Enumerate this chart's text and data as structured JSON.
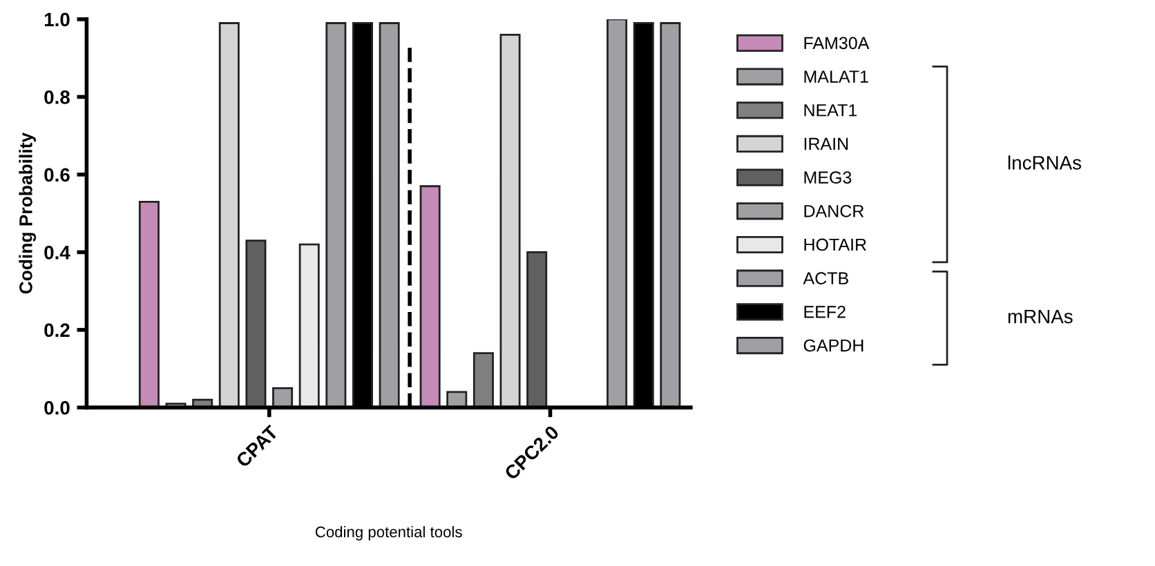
{
  "chart_data": {
    "type": "bar",
    "xlabel": "Coding potential tools",
    "ylabel": "Coding Probability",
    "categories": [
      "CPAT",
      "CPC2.0"
    ],
    "series": [
      {
        "name": "FAM30A",
        "color": "#c48ab8",
        "values": [
          0.53,
          0.57
        ]
      },
      {
        "name": "MALAT1",
        "color": "#a0a0a4",
        "values": [
          0.01,
          0.04
        ]
      },
      {
        "name": "NEAT1",
        "color": "#808080",
        "values": [
          0.02,
          0.14
        ]
      },
      {
        "name": "IRAIN",
        "color": "#d4d4d4",
        "values": [
          0.99,
          0.96
        ]
      },
      {
        "name": "MEG3",
        "color": "#606060",
        "values": [
          0.43,
          0.4
        ]
      },
      {
        "name": "DANCR",
        "color": "#a0a0a4",
        "values": [
          0.05,
          null
        ]
      },
      {
        "name": "HOTAIR",
        "color": "#e8e8e8",
        "values": [
          0.42,
          null
        ]
      },
      {
        "name": "ACTB",
        "color": "#a0a0a4",
        "values": [
          0.99,
          1.0
        ]
      },
      {
        "name": "EEF2",
        "color": "#000000",
        "values": [
          0.99,
          0.99
        ]
      },
      {
        "name": "GAPDH",
        "color": "#a0a0a4",
        "values": [
          0.99,
          0.99
        ]
      }
    ],
    "ylim": [
      0,
      1
    ],
    "yticks": [
      {
        "value": 0,
        "label": "0.0"
      },
      {
        "value": 0.2,
        "label": "0.2"
      },
      {
        "value": 0.4,
        "label": "0.4"
      },
      {
        "value": 0.6,
        "label": "0.6"
      },
      {
        "value": 0.8,
        "label": "0.8"
      },
      {
        "value": 1,
        "label": "1.0"
      }
    ],
    "annotations": [
      "lncRNAs",
      "mRNAs"
    ],
    "grid": false,
    "legend": "right"
  }
}
